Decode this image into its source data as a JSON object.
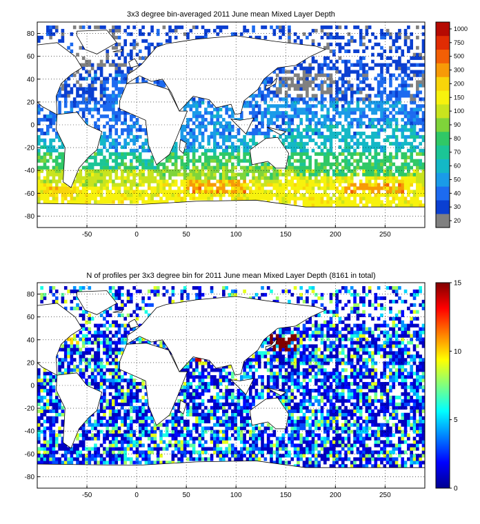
{
  "chart_data": [
    {
      "type": "heatmap",
      "title": "3x3 degree bin-averaged 2011 June mean Mixed Layer Depth",
      "xlim": [
        -100,
        290
      ],
      "ylim": [
        -90,
        90
      ],
      "xticks": [
        -50,
        0,
        50,
        100,
        150,
        200,
        250
      ],
      "yticks": [
        -80,
        -60,
        -40,
        -20,
        0,
        20,
        40,
        60,
        80
      ],
      "grid": true,
      "bin_size_deg": 3,
      "colorbar": {
        "labels": [
          "20",
          "30",
          "40",
          "50",
          "60",
          "70",
          "80",
          "90",
          "100",
          "150",
          "200",
          "300",
          "500",
          "750",
          "1000"
        ],
        "colors": [
          "#808080",
          "#0a3fd1",
          "#1d6bf0",
          "#1a9be8",
          "#14b8c6",
          "#1bc596",
          "#30c866",
          "#7fd43a",
          "#c9e41e",
          "#f7f20d",
          "#f8d50a",
          "#f79a07",
          "#f25f05",
          "#e02c03",
          "#b50a02"
        ]
      },
      "bands": [
        {
          "lat": [
            48,
            80
          ],
          "lon": [
            -60,
            -20
          ],
          "level": "20"
        },
        {
          "lat": [
            20,
            48
          ],
          "lon": [
            -75,
            -30
          ],
          "level": "30"
        },
        {
          "lat": [
            -10,
            20
          ],
          "lon": [
            -40,
            15
          ],
          "level": "40"
        },
        {
          "lat": [
            -25,
            -10
          ],
          "lon": [
            -35,
            15
          ],
          "level": "50"
        },
        {
          "lat": [
            -40,
            -25
          ],
          "lon": [
            -50,
            20
          ],
          "level": "70"
        },
        {
          "lat": [
            -55,
            -40
          ],
          "lon": [
            -60,
            20
          ],
          "level": "100"
        },
        {
          "lat": [
            -62,
            -55
          ],
          "lon": [
            -90,
            -60
          ],
          "level": "200"
        },
        {
          "lat": [
            -60,
            -48
          ],
          "lon": [
            20,
            120
          ],
          "level": "150"
        },
        {
          "lat": [
            -60,
            -48
          ],
          "lon": [
            50,
            110
          ],
          "level": "300"
        },
        {
          "lat": [
            -48,
            -35
          ],
          "lon": [
            20,
            150
          ],
          "level": "90"
        },
        {
          "lat": [
            -20,
            20
          ],
          "lon": [
            45,
            100
          ],
          "level": "50"
        },
        {
          "lat": [
            -60,
            -45
          ],
          "lon": [
            150,
            280
          ],
          "level": "150"
        },
        {
          "lat": [
            -60,
            -52
          ],
          "lon": [
            210,
            270
          ],
          "level": "300"
        },
        {
          "lat": [
            -45,
            -25
          ],
          "lon": [
            160,
            280
          ],
          "level": "80"
        },
        {
          "lat": [
            -25,
            0
          ],
          "lon": [
            150,
            280
          ],
          "level": "60"
        },
        {
          "lat": [
            0,
            20
          ],
          "lon": [
            130,
            270
          ],
          "level": "50"
        },
        {
          "lat": [
            25,
            45
          ],
          "lon": [
            140,
            200
          ],
          "level": "20"
        },
        {
          "lat": [
            20,
            60
          ],
          "lon": [
            200,
            240
          ],
          "level": "30"
        },
        {
          "lat": [
            20,
            45
          ],
          "lon": [
            275,
            290
          ],
          "level": "20"
        }
      ]
    },
    {
      "type": "heatmap",
      "title": "N of profiles per 3x3 degree bin for 2011 June mean Mixed Layer Depth  (8161 in total)",
      "xlim": [
        -100,
        290
      ],
      "ylim": [
        -90,
        90
      ],
      "xticks": [
        -50,
        0,
        50,
        100,
        150,
        200,
        250
      ],
      "yticks": [
        -80,
        -60,
        -40,
        -20,
        0,
        20,
        40,
        60,
        80
      ],
      "grid": true,
      "total_profiles": 8161,
      "colorbar": {
        "range": [
          0,
          15
        ],
        "ticks": [
          "0",
          "5",
          "10",
          "15"
        ]
      },
      "hotspots": [
        {
          "lat": [
            30,
            45
          ],
          "lon": [
            135,
            160
          ],
          "count": 15
        },
        {
          "lat": [
            20,
            28
          ],
          "lon": [
            60,
            68
          ],
          "count": 14
        },
        {
          "lat": [
            36,
            42
          ],
          "lon": [
            -70,
            -55
          ],
          "count": 10
        }
      ]
    }
  ]
}
